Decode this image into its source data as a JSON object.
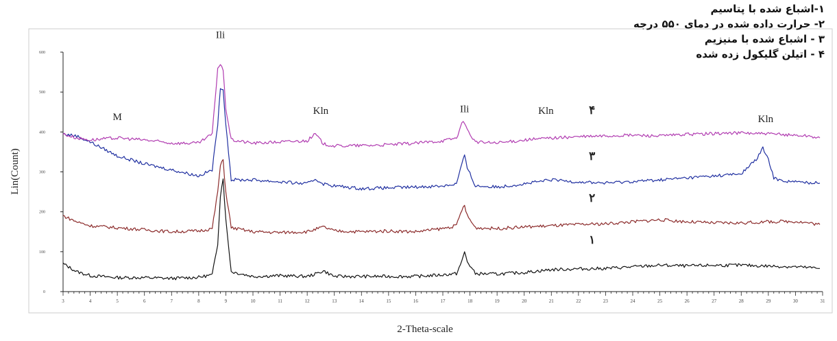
{
  "legend": [
    "۱-اشباع شده با پتاسیم",
    "۲- حرارت داده شده در دمای ۵۵۰ درجه",
    "۳ - اشباع شده با منیزیم",
    "۴ - اتیلن گلیکول زده شده"
  ],
  "chart_data": {
    "type": "line",
    "xlabel": "2-Theta-scale",
    "ylabel": "Lin(Count)",
    "xlim": [
      3,
      31
    ],
    "ylim": [
      0,
      600
    ],
    "xticks": [
      3,
      4,
      5,
      6,
      7,
      8,
      9,
      10,
      11,
      12,
      13,
      14,
      15,
      16,
      17,
      18,
      19,
      20,
      21,
      22,
      23,
      24,
      25,
      26,
      27,
      28,
      29,
      30,
      31
    ],
    "xtick_labels": [
      "3",
      "4",
      "5",
      "6",
      "7",
      "8",
      "9",
      "10",
      "11",
      "12",
      "13",
      "14",
      "15",
      "16",
      "17",
      "18",
      "19",
      "20",
      "21",
      "22",
      "23",
      "24",
      "25",
      "26",
      "27",
      "28",
      "29",
      "30",
      "31"
    ],
    "yticks": [
      0,
      100,
      200,
      300,
      400,
      500,
      600
    ],
    "ytick_labels": [
      "0",
      "100",
      "200",
      "300",
      "400",
      "500",
      "600"
    ],
    "grid": false,
    "series": [
      {
        "name": "۱",
        "color": "#111111",
        "x": [
          3,
          3.5,
          4,
          5,
          6,
          7,
          8,
          8.5,
          8.7,
          8.8,
          8.9,
          9.0,
          9.2,
          10,
          11,
          12,
          12.3,
          12.6,
          13,
          14,
          15,
          16,
          17,
          17.5,
          17.7,
          17.8,
          17.9,
          18.2,
          19,
          20,
          21,
          22,
          23,
          24,
          25,
          26,
          27,
          28,
          29,
          30,
          30.5,
          30.9
        ],
        "y": [
          70,
          50,
          40,
          35,
          35,
          33,
          36,
          42,
          120,
          240,
          285,
          180,
          50,
          38,
          40,
          38,
          44,
          52,
          38,
          38,
          38,
          38,
          42,
          45,
          75,
          100,
          75,
          45,
          44,
          48,
          55,
          57,
          58,
          62,
          66,
          64,
          66,
          66,
          64,
          62,
          60,
          58
        ]
      },
      {
        "name": "۲",
        "color": "#8b2a2a",
        "x": [
          3,
          3.5,
          4,
          5,
          6,
          7,
          8,
          8.5,
          8.7,
          8.8,
          8.9,
          9.0,
          9.2,
          10,
          11,
          12,
          12.3,
          12.6,
          13,
          14,
          15,
          16,
          17,
          17.5,
          17.7,
          17.8,
          17.9,
          18.2,
          19,
          20,
          21,
          22,
          23,
          24,
          25,
          26,
          27,
          28,
          29,
          30,
          30.5,
          30.9
        ],
        "y": [
          190,
          175,
          165,
          160,
          155,
          150,
          152,
          158,
          250,
          315,
          330,
          250,
          160,
          150,
          148,
          150,
          156,
          162,
          152,
          150,
          152,
          150,
          158,
          165,
          205,
          215,
          190,
          160,
          158,
          162,
          165,
          168,
          170,
          175,
          180,
          175,
          172,
          172,
          175,
          176,
          172,
          168
        ]
      },
      {
        "name": "۳",
        "color": "#1f2fa0",
        "x": [
          3,
          3.5,
          4,
          5,
          6,
          7,
          8,
          8.5,
          8.7,
          8.8,
          8.9,
          9.0,
          9.2,
          10,
          11,
          12,
          12.3,
          12.6,
          13,
          14,
          15,
          16,
          17,
          17.5,
          17.7,
          17.8,
          17.9,
          18.2,
          19,
          20,
          21,
          22,
          23,
          24,
          25,
          26,
          27,
          28,
          28.6,
          28.8,
          29,
          29.2,
          29.5,
          30,
          30.5,
          30.9
        ],
        "y": [
          395,
          390,
          375,
          340,
          320,
          305,
          290,
          305,
          420,
          505,
          510,
          420,
          280,
          280,
          275,
          270,
          282,
          270,
          265,
          258,
          260,
          262,
          265,
          270,
          320,
          340,
          310,
          265,
          262,
          270,
          280,
          275,
          272,
          276,
          280,
          285,
          290,
          295,
          335,
          360,
          330,
          285,
          278,
          275,
          273,
          272
        ]
      },
      {
        "name": "۴",
        "color": "#b03ab0",
        "x": [
          3,
          3.5,
          4,
          5,
          6,
          7,
          8,
          8.5,
          8.7,
          8.8,
          8.9,
          9.0,
          9.2,
          10,
          11,
          12,
          12.3,
          12.6,
          13,
          14,
          15,
          16,
          17,
          17.5,
          17.7,
          17.8,
          17.9,
          18.2,
          19,
          20,
          21,
          22,
          23,
          24,
          25,
          26,
          27,
          28,
          29,
          30,
          30.5,
          30.9
        ],
        "y": [
          395,
          385,
          380,
          385,
          380,
          372,
          372,
          395,
          560,
          570,
          555,
          460,
          380,
          372,
          375,
          378,
          395,
          370,
          365,
          366,
          368,
          372,
          378,
          385,
          420,
          425,
          405,
          375,
          372,
          380,
          385,
          388,
          390,
          392,
          390,
          394,
          396,
          398,
          395,
          392,
          390,
          385
        ]
      }
    ],
    "annotations": [
      {
        "text": "M",
        "x": 5,
        "y": 430
      },
      {
        "text": "Ili",
        "x": 8.8,
        "y": 635
      },
      {
        "text": "Kln",
        "x": 12.5,
        "y": 445
      },
      {
        "text": "Ili",
        "x": 17.8,
        "y": 450
      },
      {
        "text": "Kln",
        "x": 20.8,
        "y": 445
      },
      {
        "text": "Kln",
        "x": 28.9,
        "y": 425
      },
      {
        "text": "۴",
        "x": 22.5,
        "y": 445
      },
      {
        "text": "۳",
        "x": 22.5,
        "y": 330
      },
      {
        "text": "۲",
        "x": 22.5,
        "y": 225
      },
      {
        "text": "۱",
        "x": 22.5,
        "y": 120
      }
    ]
  }
}
